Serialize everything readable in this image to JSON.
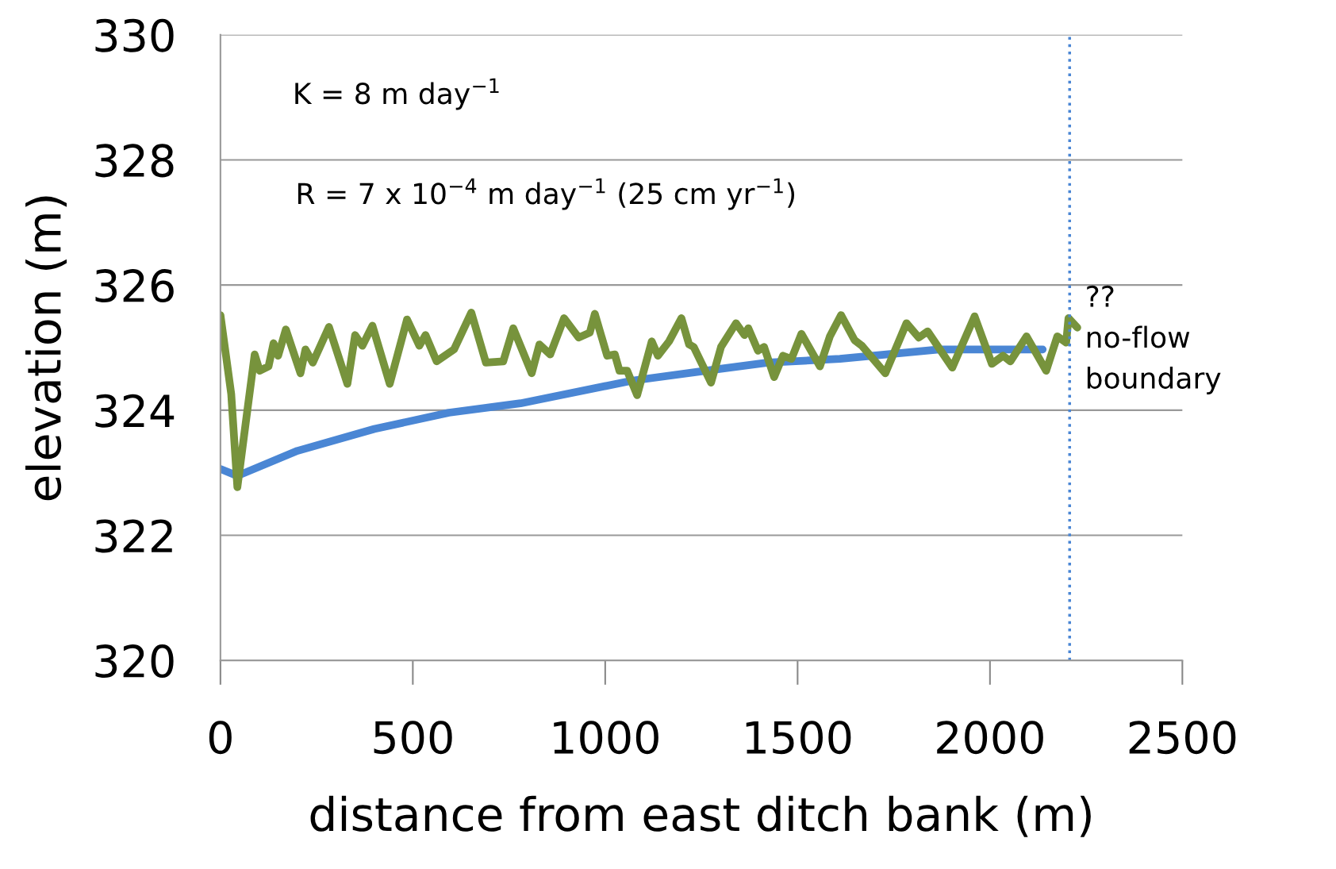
{
  "chart_data": {
    "type": "line",
    "xlabel": "distance from east ditch bank (m)",
    "ylabel": "elevation (m)",
    "xlim": [
      0,
      2500
    ],
    "xticks": [
      0,
      500,
      1000,
      1500,
      2000,
      2500
    ],
    "ylim": [
      320,
      330
    ],
    "yticks": [
      320,
      322,
      324,
      326,
      328,
      330
    ],
    "grid": "y",
    "series": [
      {
        "color": "#4a86d4",
        "x": [
          0,
          44,
          200,
          400,
          594,
          780,
          1069,
          1262,
          1423,
          1610,
          1867,
          2137
        ],
        "values": [
          323.06,
          322.95,
          323.35,
          323.7,
          323.96,
          324.11,
          324.47,
          324.63,
          324.76,
          324.82,
          324.97,
          324.97
        ]
      },
      {
        "color": "#77933c",
        "x": [
          0,
          28,
          44,
          70,
          89,
          102,
          125,
          138,
          150,
          170,
          208,
          221,
          240,
          282,
          330,
          350,
          369,
          395,
          440,
          485,
          517,
          533,
          562,
          607,
          652,
          690,
          735,
          761,
          809,
          829,
          857,
          893,
          931,
          960,
          973,
          1005,
          1025,
          1037,
          1057,
          1083,
          1121,
          1137,
          1166,
          1198,
          1218,
          1230,
          1275,
          1301,
          1340,
          1362,
          1372,
          1397,
          1413,
          1439,
          1462,
          1484,
          1510,
          1558,
          1584,
          1613,
          1648,
          1667,
          1728,
          1783,
          1815,
          1838,
          1902,
          1960,
          2005,
          2034,
          2053,
          2095,
          2146,
          2175,
          2198,
          2204,
          2227
        ],
        "values": [
          325.52,
          324.26,
          322.77,
          324.0,
          324.89,
          324.63,
          324.7,
          325.07,
          324.87,
          325.29,
          324.59,
          324.97,
          324.76,
          325.33,
          324.42,
          325.2,
          325.03,
          325.35,
          324.42,
          325.45,
          325.03,
          325.2,
          324.78,
          324.97,
          325.56,
          324.76,
          324.78,
          325.31,
          324.59,
          325.05,
          324.89,
          325.47,
          325.16,
          325.24,
          325.54,
          324.87,
          324.89,
          324.63,
          324.63,
          324.24,
          325.1,
          324.87,
          325.1,
          325.47,
          325.05,
          325.01,
          324.44,
          325.01,
          325.39,
          325.2,
          325.31,
          324.95,
          325.01,
          324.53,
          324.87,
          324.82,
          325.22,
          324.7,
          325.18,
          325.52,
          325.12,
          325.03,
          324.59,
          325.39,
          325.16,
          325.26,
          324.68,
          325.5,
          324.74,
          324.87,
          324.78,
          325.18,
          324.63,
          325.18,
          325.08,
          325.47,
          325.32
        ]
      }
    ],
    "ref_lines": [
      {
        "axis": "x",
        "value": 2207,
        "label": "??\nno-flow\nboundary",
        "color": "#4a86d4",
        "line_style": "dotted"
      }
    ],
    "annotations": [
      "K = 8 m day$^{−1}$",
      "R = 7 x 10$^{−4}$ m day$^{−1}$ (25 cm yr$^{−1}$)"
    ]
  }
}
